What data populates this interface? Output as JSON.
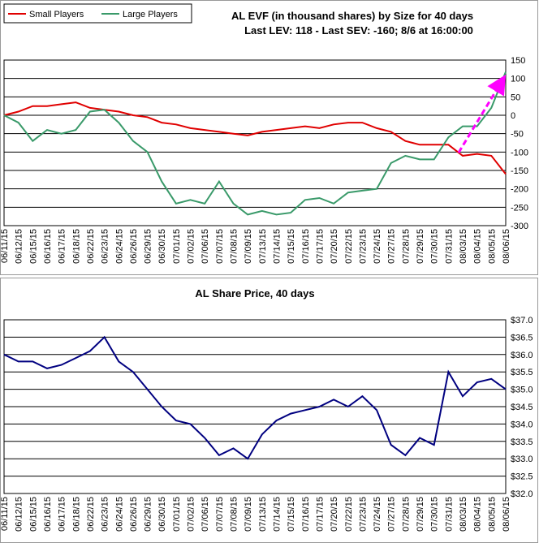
{
  "chart_data": [
    {
      "type": "line",
      "title": "AL EVF (in thousand shares) by Size for 40 days",
      "subtitle": "Last LEV: 118 - Last SEV: -160; 8/6 at 16:00:00",
      "categories": [
        "06/11/15",
        "06/12/15",
        "06/15/15",
        "06/16/15",
        "06/17/15",
        "06/18/15",
        "06/22/15",
        "06/23/15",
        "06/24/15",
        "06/26/15",
        "06/29/15",
        "06/30/15",
        "07/01/15",
        "07/02/15",
        "07/06/15",
        "07/07/15",
        "07/08/15",
        "07/09/15",
        "07/13/15",
        "07/14/15",
        "07/15/15",
        "07/16/15",
        "07/17/15",
        "07/20/15",
        "07/22/15",
        "07/23/15",
        "07/24/15",
        "07/27/15",
        "07/28/15",
        "07/29/15",
        "07/30/15",
        "07/31/15",
        "08/03/15",
        "08/04/15",
        "08/05/15",
        "08/06/15"
      ],
      "series": [
        {
          "name": "Small Players",
          "color": "#e00000",
          "values": [
            0,
            10,
            25,
            25,
            30,
            35,
            20,
            15,
            10,
            0,
            -5,
            -20,
            -25,
            -35,
            -40,
            -45,
            -50,
            -55,
            -45,
            -40,
            -35,
            -30,
            -35,
            -25,
            -20,
            -20,
            -35,
            -45,
            -70,
            -80,
            -80,
            -80,
            -110,
            -105,
            -110,
            -160
          ]
        },
        {
          "name": "Large Players",
          "color": "#3a9a6a",
          "values": [
            0,
            -20,
            -70,
            -40,
            -50,
            -40,
            10,
            15,
            -20,
            -70,
            -100,
            -180,
            -240,
            -230,
            -240,
            -180,
            -240,
            -270,
            -260,
            -270,
            -265,
            -230,
            -225,
            -240,
            -210,
            -205,
            -200,
            -130,
            -110,
            -120,
            -120,
            -60,
            -30,
            -30,
            20,
            118
          ]
        }
      ],
      "ylim": [
        -300,
        150
      ],
      "yticks": [
        -300,
        -250,
        -200,
        -150,
        -100,
        -50,
        0,
        50,
        100,
        150
      ],
      "grid": true,
      "legend": "top-left"
    },
    {
      "type": "line",
      "title": "AL Share Price, 40 days",
      "categories": [
        "06/11/15",
        "06/12/15",
        "06/15/15",
        "06/16/15",
        "06/17/15",
        "06/18/15",
        "06/22/15",
        "06/23/15",
        "06/24/15",
        "06/26/15",
        "06/29/15",
        "06/30/15",
        "07/01/15",
        "07/02/15",
        "07/06/15",
        "07/07/15",
        "07/08/15",
        "07/09/15",
        "07/13/15",
        "07/14/15",
        "07/15/15",
        "07/16/15",
        "07/17/15",
        "07/20/15",
        "07/22/15",
        "07/23/15",
        "07/24/15",
        "07/27/15",
        "07/28/15",
        "07/29/15",
        "07/30/15",
        "07/31/15",
        "08/03/15",
        "08/04/15",
        "08/05/15",
        "08/06/15"
      ],
      "series": [
        {
          "name": "AL",
          "color": "#000080",
          "values": [
            36.0,
            35.8,
            35.8,
            35.6,
            35.7,
            35.9,
            36.1,
            36.5,
            35.8,
            35.5,
            35.0,
            34.5,
            34.1,
            34.0,
            33.6,
            33.1,
            33.3,
            33.0,
            33.7,
            34.1,
            34.3,
            34.4,
            34.5,
            34.7,
            34.5,
            34.8,
            34.4,
            33.4,
            33.1,
            33.6,
            33.4,
            35.5,
            34.8,
            35.2,
            35.3,
            35.0
          ]
        }
      ],
      "ylim": [
        32.0,
        37.0
      ],
      "yticks": [
        {
          "value": 32.0,
          "label": "$32.0"
        },
        {
          "value": 32.5,
          "label": "$32.5"
        },
        {
          "value": 33.0,
          "label": "$33.0"
        },
        {
          "value": 33.5,
          "label": "$33.5"
        },
        {
          "value": 34.0,
          "label": "$34.0"
        },
        {
          "value": 34.5,
          "label": "$34.5"
        },
        {
          "value": 35.0,
          "label": "$35.0"
        },
        {
          "value": 35.5,
          "label": "$35.5"
        },
        {
          "value": 36.0,
          "label": "$36.0"
        },
        {
          "value": 36.5,
          "label": "$36.5"
        },
        {
          "value": 37.0,
          "label": "$37.0"
        }
      ],
      "grid": true
    }
  ]
}
